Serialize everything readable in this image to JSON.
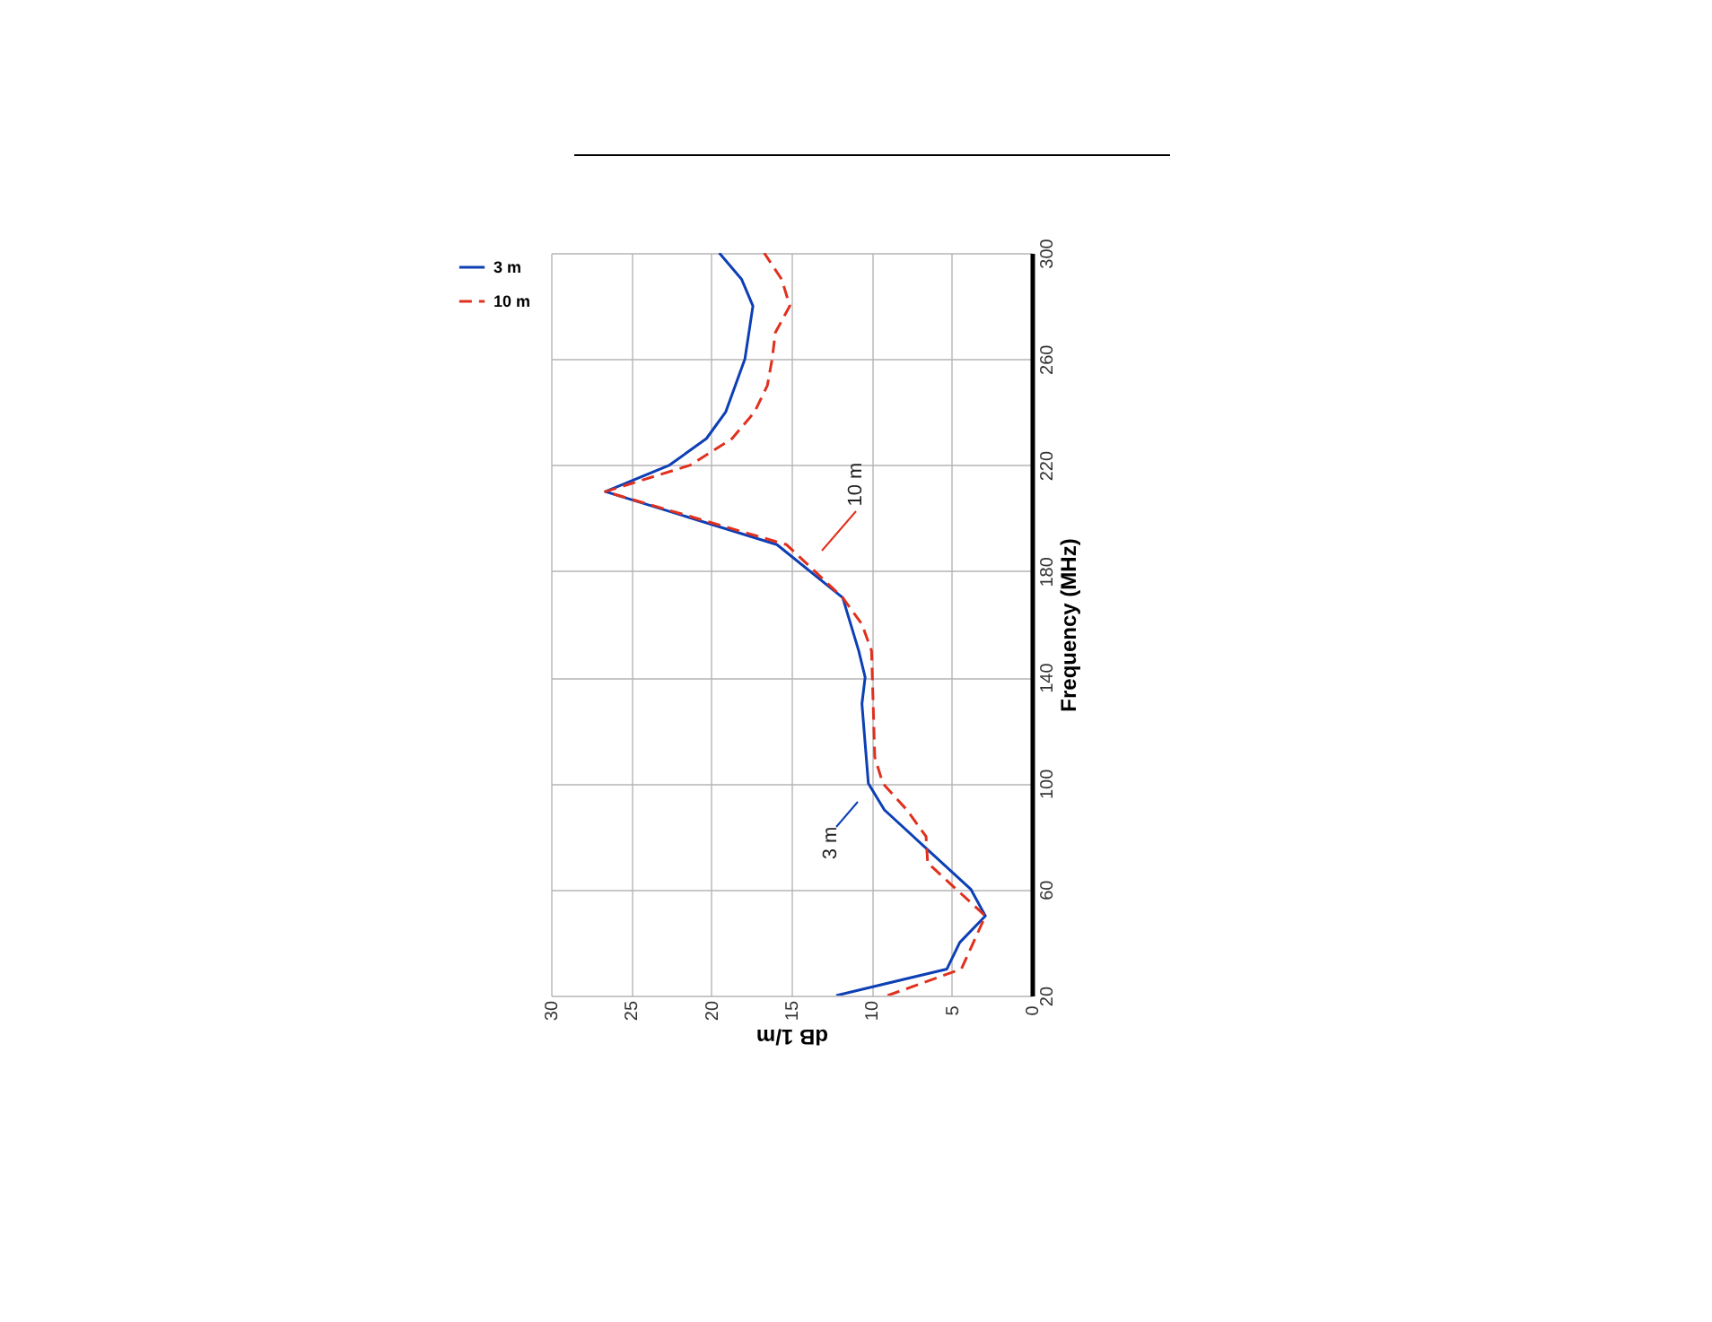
{
  "chart_data": {
    "type": "line",
    "xlabel": "dB 1/m",
    "ylabel": "Frequency (MHz)",
    "series": [
      {
        "name": "3 m",
        "color": "#0d3fb5",
        "line_style": "solid",
        "x": [
          12.2,
          5.3,
          4.5,
          2.9,
          3.8,
          6.5,
          9.2,
          10.2,
          10.6,
          10.4,
          10.8,
          11.8,
          15.9,
          26.6,
          22.6,
          20.3,
          19.1,
          17.9,
          17.4,
          18.1,
          19.5
        ],
        "values": [
          20,
          30,
          40,
          50,
          60,
          75,
          90,
          100,
          130,
          140,
          150,
          170,
          190,
          210,
          220,
          230,
          240,
          260,
          280,
          290,
          300
        ]
      },
      {
        "name": "10 m",
        "color": "#e0301e",
        "line_style": "dashed",
        "x": [
          9.0,
          4.4,
          2.9,
          4.7,
          6.5,
          6.6,
          7.8,
          9.3,
          9.8,
          10.0,
          10.6,
          11.8,
          15.3,
          26.6,
          21.3,
          18.7,
          17.3,
          16.5,
          16.2,
          16.0,
          15.1,
          15.6,
          16.7
        ],
        "values": [
          20,
          30,
          50,
          60,
          70,
          80,
          90,
          100,
          110,
          150,
          160,
          170,
          190,
          210,
          220,
          230,
          240,
          250,
          260,
          270,
          280,
          290,
          300
        ]
      }
    ],
    "annotations": [
      "3 m",
      "10 m"
    ],
    "xlim": [
      30,
      0
    ],
    "xticks": [
      0,
      5,
      10,
      15,
      20,
      25,
      30
    ],
    "ylim": [
      20,
      300
    ],
    "yticks": [
      20,
      60,
      100,
      140,
      180,
      220,
      260,
      300
    ],
    "grid": true,
    "legend": "top left",
    "marker": "none"
  }
}
